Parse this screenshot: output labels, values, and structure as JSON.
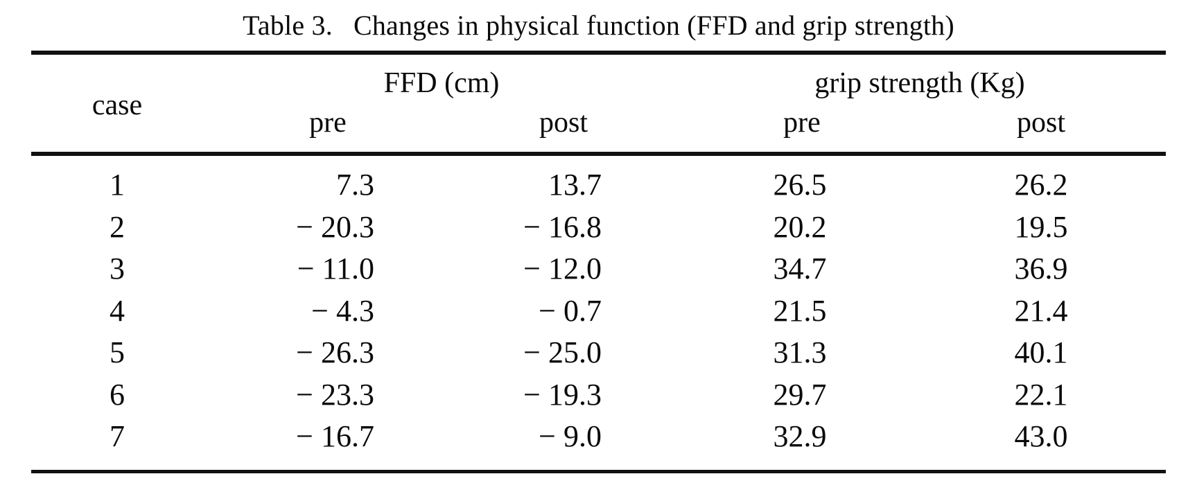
{
  "page": {
    "background": "#ffffff",
    "text_color": "#0a0a0a",
    "rule_color": "#111111"
  },
  "table": {
    "title_label": "Table 3.",
    "title_text": "Changes in physical function (FFD and grip strength)",
    "case_header": "case",
    "groups": [
      {
        "label": "FFD (cm)",
        "sub": [
          "pre",
          "post"
        ]
      },
      {
        "label": "grip strength (Kg)",
        "sub": [
          "pre",
          "post"
        ]
      }
    ],
    "rows": [
      {
        "case": "1",
        "ffd_pre": "7.3",
        "ffd_post": "13.7",
        "grip_pre": "26.5",
        "grip_post": "26.2"
      },
      {
        "case": "2",
        "ffd_pre": "− 20.3",
        "ffd_post": "− 16.8",
        "grip_pre": "20.2",
        "grip_post": "19.5"
      },
      {
        "case": "3",
        "ffd_pre": "− 11.0",
        "ffd_post": "− 12.0",
        "grip_pre": "34.7",
        "grip_post": "36.9"
      },
      {
        "case": "4",
        "ffd_pre": "− 4.3",
        "ffd_post": "− 0.7",
        "grip_pre": "21.5",
        "grip_post": "21.4"
      },
      {
        "case": "5",
        "ffd_pre": "− 26.3",
        "ffd_post": "− 25.0",
        "grip_pre": "31.3",
        "grip_post": "40.1"
      },
      {
        "case": "6",
        "ffd_pre": "− 23.3",
        "ffd_post": "− 19.3",
        "grip_pre": "29.7",
        "grip_post": "22.1"
      },
      {
        "case": "7",
        "ffd_pre": "− 16.7",
        "ffd_post": "− 9.0",
        "grip_pre": "32.9",
        "grip_post": "43.0"
      }
    ]
  },
  "chart_data": {
    "type": "table",
    "title": "Table 3. Changes in physical function (FFD and grip strength)",
    "columns": [
      "case",
      "FFD (cm) pre",
      "FFD (cm) post",
      "grip strength (Kg) pre",
      "grip strength (Kg) post"
    ],
    "rows": [
      [
        1,
        7.3,
        13.7,
        26.5,
        26.2
      ],
      [
        2,
        -20.3,
        -16.8,
        20.2,
        19.5
      ],
      [
        3,
        -11.0,
        -12.0,
        34.7,
        36.9
      ],
      [
        4,
        -4.3,
        -0.7,
        21.5,
        21.4
      ],
      [
        5,
        -26.3,
        -25.0,
        31.3,
        40.1
      ],
      [
        6,
        -23.3,
        -19.3,
        29.7,
        22.1
      ],
      [
        7,
        -16.7,
        -9.0,
        32.9,
        43.0
      ]
    ]
  }
}
